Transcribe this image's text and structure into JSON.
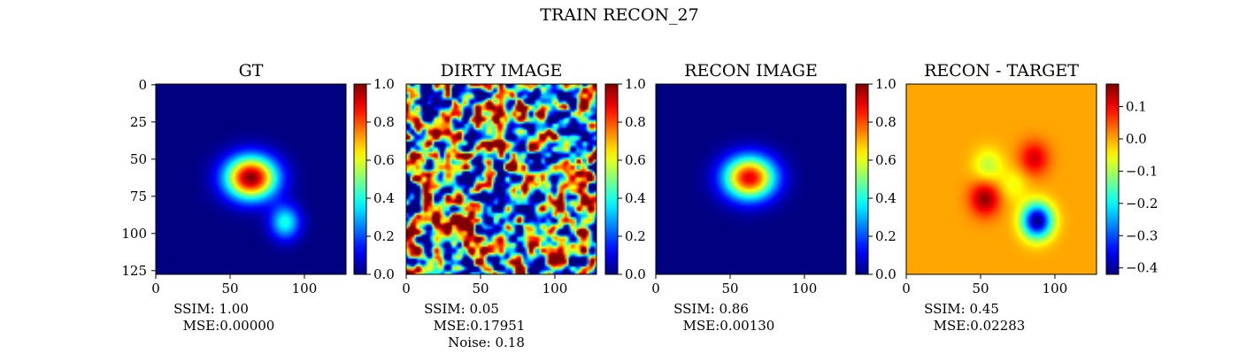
{
  "figure": {
    "title": "TRAIN RECON_27"
  },
  "colors": {
    "colormap": "jet",
    "axis": "#000000"
  },
  "chart_data": [
    {
      "type": "heatmap",
      "title": "GT",
      "image_size": [
        128,
        128
      ],
      "colormap": "jet",
      "xticks": [
        0,
        50,
        100
      ],
      "yticks": [
        0,
        25,
        50,
        75,
        100,
        125
      ],
      "colorbar": {
        "range": [
          0.0,
          1.0
        ],
        "ticks": [
          "0.0",
          "0.2",
          "0.4",
          "0.6",
          "0.8",
          "1.0"
        ]
      },
      "caption": [
        "SSIM: 1.00",
        "MSE:0.00000"
      ],
      "features": [
        {
          "shape": "gaussian_blob",
          "center": [
            64,
            63
          ],
          "peak": 1.0
        },
        {
          "shape": "gaussian_blob",
          "center": [
            87,
            93
          ],
          "peak": 0.4
        }
      ]
    },
    {
      "type": "heatmap",
      "title": "DIRTY IMAGE",
      "image_size": [
        128,
        128
      ],
      "colormap": "jet",
      "xticks": [
        0,
        50,
        100
      ],
      "colorbar": {
        "range": [
          0.0,
          1.0
        ],
        "ticks": [
          "0.0",
          "0.2",
          "0.4",
          "0.6",
          "0.8",
          "1.0"
        ]
      },
      "caption": [
        "SSIM: 0.05",
        "MSE:0.17951",
        "Noise: 0.18"
      ],
      "features": [
        {
          "shape": "noise_field",
          "mean": 0.45,
          "noise": 0.18
        }
      ]
    },
    {
      "type": "heatmap",
      "title": "RECON IMAGE",
      "image_size": [
        128,
        128
      ],
      "colormap": "jet",
      "xticks": [
        0,
        50,
        100
      ],
      "colorbar": {
        "range": [
          0.0,
          1.0
        ],
        "ticks": [
          "0.0",
          "0.2",
          "0.4",
          "0.6",
          "0.8",
          "1.0"
        ]
      },
      "caption": [
        "SSIM: 0.86",
        "MSE:0.00130"
      ],
      "features": [
        {
          "shape": "gaussian_blob",
          "center": [
            63,
            63
          ],
          "peak": 0.9
        }
      ]
    },
    {
      "type": "heatmap",
      "title": "RECON - TARGET",
      "image_size": [
        128,
        128
      ],
      "colormap": "jet",
      "xticks": [
        0,
        50,
        100
      ],
      "colorbar": {
        "range": [
          -0.42,
          0.17
        ],
        "ticks": [
          "0.1",
          "0.0",
          "−0.1",
          "−0.2",
          "−0.3",
          "−0.4"
        ],
        "tick_values": [
          0.1,
          0.0,
          -0.1,
          -0.2,
          -0.3,
          -0.4
        ]
      },
      "caption": [
        "SSIM: 0.45",
        "MSE:0.02283"
      ],
      "features": [
        {
          "shape": "gaussian_blob",
          "center": [
            88,
            92
          ],
          "peak": -0.42
        },
        {
          "shape": "gaussian_blob",
          "center": [
            53,
            77
          ],
          "peak": 0.16
        },
        {
          "shape": "gaussian_blob",
          "center": [
            86,
            50
          ],
          "peak": 0.12
        },
        {
          "shape": "gaussian_blob",
          "center": [
            55,
            55
          ],
          "peak": -0.09
        },
        {
          "shape": "gaussian_blob",
          "center": [
            72,
            68
          ],
          "peak": -0.06
        }
      ]
    }
  ]
}
